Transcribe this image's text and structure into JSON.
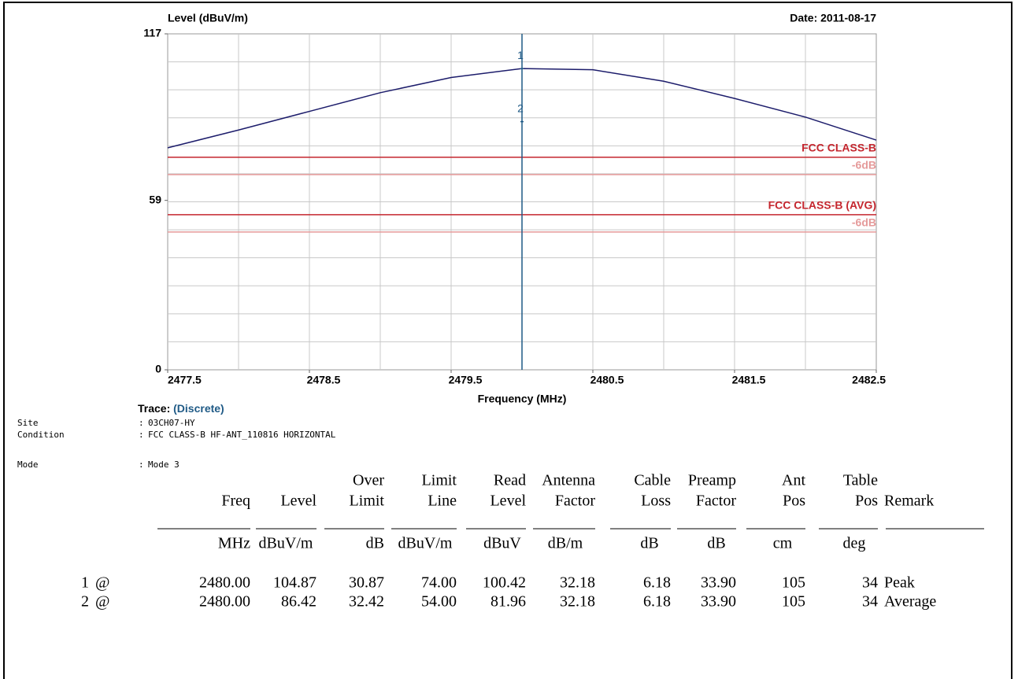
{
  "chart_data": {
    "type": "line",
    "y_label": "Level (dBuV/m)",
    "date": "Date: 2011-08-17",
    "x_label": "Frequency (MHz)",
    "xlim": [
      2477.5,
      2482.5
    ],
    "xticks": [
      2477.5,
      2478.5,
      2479.5,
      2480.5,
      2481.5,
      2482.5
    ],
    "ylim": [
      0,
      117
    ],
    "yticks": [
      0,
      59,
      117
    ],
    "grid": true,
    "x": [
      2477.5,
      2478.0,
      2478.5,
      2479.0,
      2479.5,
      2480.0,
      2480.5,
      2481.0,
      2481.5,
      2482.0,
      2482.5
    ],
    "series": [
      {
        "color": "#1c1c6b",
        "values": [
          77.3,
          83.5,
          90,
          96.5,
          101.8,
          104.9,
          104.5,
          100.5,
          94.5,
          88,
          80
        ]
      }
    ],
    "limit_lines": [
      {
        "label": "FCC CLASS-B",
        "value": 74,
        "color": "#c4262e"
      },
      {
        "label": "-6dB",
        "value": 68,
        "color": "#e59a9a"
      },
      {
        "label": "FCC CLASS-B (AVG)",
        "value": 54,
        "color": "#c4262e"
      },
      {
        "label": "-6dB",
        "value": 48,
        "color": "#e59a9a"
      }
    ],
    "markers": [
      {
        "label": "1",
        "x": 2480,
        "value": 104.87
      },
      {
        "label": "2",
        "x": 2480,
        "value": 86.42
      }
    ],
    "marker_color": "#1f5a86"
  },
  "trace": {
    "label": "Trace:",
    "value": "(Discrete)"
  },
  "info": {
    "separator": ":",
    "items": [
      {
        "label": "Site",
        "value": "03CH07-HY"
      },
      {
        "label": "Condition",
        "value": "FCC CLASS-B HF-ANT_110816 HORIZONTAL"
      },
      {
        "label": "Mode",
        "value": "Mode 3"
      }
    ]
  },
  "table": {
    "columns": [
      {
        "title": [
          "Freq"
        ],
        "unit": "MHz"
      },
      {
        "title": [
          "Level"
        ],
        "unit": "dBuV/m"
      },
      {
        "title": [
          "Over",
          "Limit"
        ],
        "unit": "dB"
      },
      {
        "title": [
          "Limit",
          "Line"
        ],
        "unit": "dBuV/m"
      },
      {
        "title": [
          "Read",
          "Level"
        ],
        "unit": "dBuV"
      },
      {
        "title": [
          "Antenna",
          "Factor"
        ],
        "unit": "dB/m"
      },
      {
        "title": [
          "Cable",
          "Loss"
        ],
        "unit": "dB"
      },
      {
        "title": [
          "Preamp",
          "Factor"
        ],
        "unit": "dB"
      },
      {
        "title": [
          "Ant",
          "Pos"
        ],
        "unit": "cm"
      },
      {
        "title": [
          "Table",
          "Pos"
        ],
        "unit": "deg"
      },
      {
        "title": [
          "Remark"
        ]
      }
    ],
    "rows": [
      [
        "1",
        "@",
        "2480.00",
        "104.87",
        "30.87",
        "74.00",
        "100.42",
        "32.18",
        "6.18",
        "33.90",
        "105",
        "34",
        "Peak"
      ],
      [
        "2",
        "@",
        "2480.00",
        "86.42",
        "32.42",
        "54.00",
        "81.96",
        "32.18",
        "6.18",
        "33.90",
        "105",
        "34",
        "Average"
      ]
    ]
  }
}
